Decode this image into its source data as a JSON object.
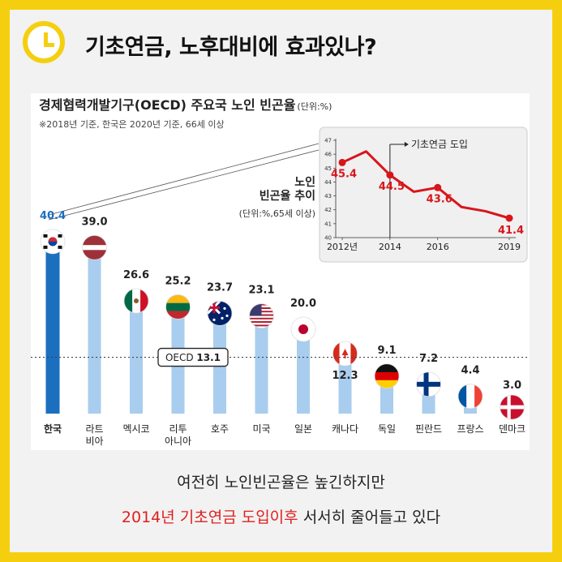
{
  "headline": "기초연금, 노후대비에 효과있나?",
  "caption_line1": "여전히 노인빈곤율은 높긴하지만",
  "caption_line2_highlight": "2014년 기초연금 도입이후",
  "caption_line2_rest": " 서서히 줄어들고 있다",
  "colors": {
    "korea_bar": "#1a6fbf",
    "other_bar": "#a8cdee",
    "inset_line": "#d7161c",
    "frame": "#f5cf0f"
  },
  "chart_data": [
    {
      "type": "bar",
      "title": "경제협력개발기구(OECD) 주요국 노인 빈곤율",
      "unit_note": "(단위:%)",
      "subtitle": "※2018년 기준, 한국은 2020년 기준, 66세 이상",
      "categories": [
        "한국",
        "라트비아",
        "멕시코",
        "리투아니아",
        "호주",
        "미국",
        "일본",
        "캐나다",
        "독일",
        "핀란드",
        "프랑스",
        "덴마크"
      ],
      "category_lines": [
        [
          "한국"
        ],
        [
          "라트",
          "비아"
        ],
        [
          "멕시코"
        ],
        [
          "리투",
          "아니아"
        ],
        [
          "호주"
        ],
        [
          "미국"
        ],
        [
          "일본"
        ],
        [
          "캐나다"
        ],
        [
          "독일"
        ],
        [
          "핀란드"
        ],
        [
          "프랑스"
        ],
        [
          "덴마크"
        ]
      ],
      "values": [
        40.4,
        39.0,
        26.6,
        25.2,
        23.7,
        23.1,
        20.0,
        12.3,
        9.1,
        7.2,
        4.4,
        3.0
      ],
      "value_labels": [
        "40.4",
        "39.0",
        "26.6",
        "25.2",
        "23.7",
        "23.1",
        "20.0",
        "12.3",
        "9.1",
        "7.2",
        "4.4",
        "3.0"
      ],
      "flags": [
        "korea-flag-icon",
        "latvia-flag-icon",
        "mexico-flag-icon",
        "lithuania-flag-icon",
        "australia-flag-icon",
        "usa-flag-icon",
        "japan-flag-icon",
        "canada-flag-icon",
        "germany-flag-icon",
        "finland-flag-icon",
        "france-flag-icon",
        "denmark-flag-icon"
      ],
      "reference_line": {
        "label": "OECD",
        "value": 13.1,
        "value_label": "13.1"
      },
      "grid": false
    },
    {
      "type": "line",
      "title_lines": [
        "노인",
        "빈곤율 추이"
      ],
      "unit_note": "(단위:%,65세 이상)",
      "x": [
        2012,
        2013,
        2014,
        2015,
        2016,
        2017,
        2018,
        2019
      ],
      "y": [
        45.4,
        46.2,
        44.5,
        43.3,
        43.6,
        42.2,
        41.9,
        41.4
      ],
      "labeled_points": [
        {
          "x": 2012,
          "y": 45.4,
          "label": "45.4"
        },
        {
          "x": 2014,
          "y": 44.5,
          "label": "44.5"
        },
        {
          "x": 2016,
          "y": 43.6,
          "label": "43.6"
        },
        {
          "x": 2019,
          "y": 41.4,
          "label": "41.4"
        }
      ],
      "x_tick_labels": [
        "2012년",
        "2014",
        "2016",
        "2019"
      ],
      "x_tick_values": [
        2012,
        2014,
        2016,
        2019
      ],
      "y_ticks": [
        40,
        41,
        42,
        43,
        44,
        45,
        46,
        47
      ],
      "ylim": [
        40,
        47
      ],
      "annotation": "기초연금 도입",
      "annotation_x": 2014
    }
  ]
}
